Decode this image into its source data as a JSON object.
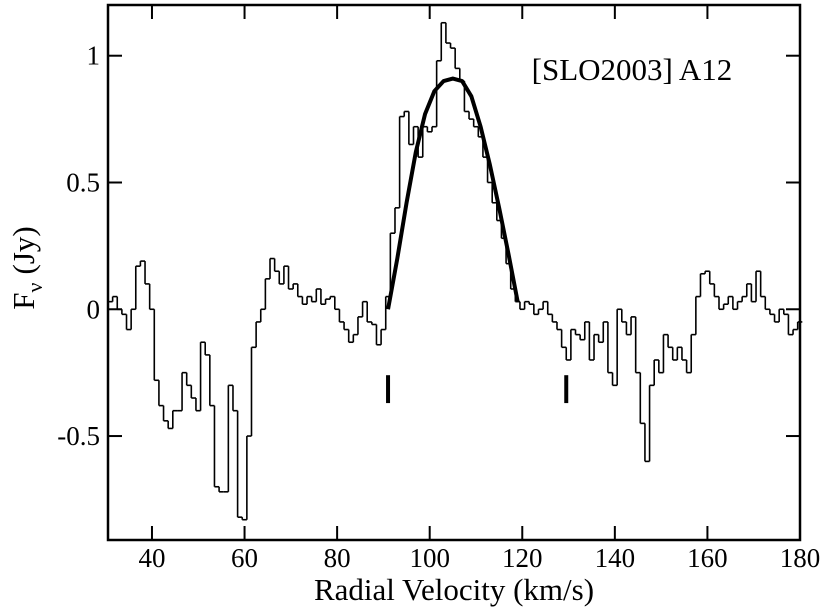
{
  "chart_data": {
    "type": "step",
    "annotation": "[SLO2003] A12",
    "xlabel": "Radial Velocity (km/s)",
    "ylabel": {
      "main": "F",
      "sub": "ν",
      "rest": "(Jy)"
    },
    "xlim": [
      30.5,
      180
    ],
    "ylim": [
      -0.91,
      1.2
    ],
    "xticks": [
      40,
      60,
      80,
      100,
      120,
      140,
      160,
      180
    ],
    "yticks": [
      -0.5,
      0,
      0.5,
      1
    ],
    "x": [
      31,
      32,
      33,
      34,
      35,
      36,
      37,
      38,
      39,
      40,
      41,
      42,
      43,
      44,
      45,
      46,
      47,
      48,
      49,
      50,
      51,
      52,
      53,
      54,
      55,
      56,
      57,
      58,
      59,
      60,
      61,
      62,
      63,
      64,
      65,
      66,
      67,
      68,
      69,
      70,
      71,
      72,
      73,
      74,
      75,
      76,
      77,
      78,
      79,
      80,
      81,
      82,
      83,
      84,
      85,
      86,
      87,
      88,
      89,
      90,
      91,
      92,
      93,
      94,
      95,
      96,
      97,
      98,
      99,
      100,
      101,
      102,
      103,
      104,
      105,
      106,
      107,
      108,
      109,
      110,
      111,
      112,
      113,
      114,
      115,
      116,
      117,
      118,
      119,
      120,
      121,
      122,
      123,
      124,
      125,
      126,
      127,
      128,
      129,
      130,
      131,
      132,
      133,
      134,
      135,
      136,
      137,
      138,
      139,
      140,
      141,
      142,
      143,
      144,
      145,
      146,
      147,
      148,
      149,
      150,
      151,
      152,
      153,
      154,
      155,
      156,
      157,
      158,
      159,
      160,
      161,
      162,
      163,
      164,
      165,
      166,
      167,
      168,
      169,
      170,
      171,
      172,
      173,
      174,
      175,
      176,
      177,
      178,
      179,
      180
    ],
    "series": [
      {
        "name": "spectrum",
        "color": "#000000",
        "values": [
          0.03,
          0.05,
          0.0,
          -0.02,
          -0.08,
          0.0,
          0.17,
          0.19,
          0.1,
          0.0,
          -0.28,
          -0.38,
          -0.44,
          -0.47,
          -0.4,
          -0.4,
          -0.25,
          -0.3,
          -0.35,
          -0.4,
          -0.13,
          -0.18,
          -0.38,
          -0.7,
          -0.72,
          -0.72,
          -0.3,
          -0.4,
          -0.82,
          -0.83,
          -0.5,
          -0.15,
          -0.05,
          0.0,
          0.12,
          0.2,
          0.15,
          0.1,
          0.17,
          0.08,
          0.1,
          0.05,
          0.02,
          0.05,
          0.03,
          0.08,
          0.02,
          0.04,
          0.05,
          0.0,
          -0.05,
          -0.08,
          -0.13,
          -0.1,
          -0.03,
          0.03,
          -0.05,
          -0.06,
          -0.14,
          -0.08,
          0.05,
          0.3,
          0.4,
          0.76,
          0.78,
          0.65,
          0.72,
          0.6,
          0.72,
          0.7,
          0.72,
          0.98,
          1.13,
          1.05,
          1.03,
          0.95,
          0.9,
          0.78,
          0.75,
          0.72,
          0.68,
          0.6,
          0.5,
          0.42,
          0.35,
          0.28,
          0.18,
          0.08,
          0.03,
          0.0,
          0.03,
          0.02,
          -0.02,
          0.0,
          0.03,
          -0.02,
          -0.05,
          -0.08,
          -0.15,
          -0.2,
          -0.08,
          -0.1,
          -0.12,
          -0.05,
          -0.2,
          -0.1,
          -0.13,
          -0.05,
          -0.25,
          -0.3,
          0.0,
          -0.05,
          -0.1,
          -0.03,
          -0.25,
          -0.45,
          -0.6,
          -0.3,
          -0.2,
          -0.25,
          -0.1,
          -0.15,
          -0.2,
          -0.15,
          -0.2,
          -0.25,
          -0.1,
          0.05,
          0.14,
          0.15,
          0.1,
          0.05,
          0.0,
          0.02,
          0.05,
          0.0,
          0.03,
          0.05,
          0.1,
          0.03,
          0.15,
          0.05,
          0.0,
          -0.02,
          -0.05,
          0.0,
          -0.02,
          -0.1,
          -0.08,
          -0.05
        ]
      }
    ],
    "fit": {
      "color": "#000000",
      "x": [
        91,
        93,
        95,
        97,
        99,
        101,
        103,
        105,
        107,
        109,
        111,
        113,
        115,
        117,
        119
      ],
      "values": [
        0.0,
        0.2,
        0.42,
        0.62,
        0.77,
        0.86,
        0.9,
        0.91,
        0.9,
        0.84,
        0.72,
        0.57,
        0.4,
        0.22,
        0.03
      ]
    },
    "markers": [
      {
        "x": 91,
        "y": [
          -0.26,
          -0.37
        ]
      },
      {
        "x": 129.5,
        "y": [
          -0.26,
          -0.37
        ]
      }
    ]
  }
}
